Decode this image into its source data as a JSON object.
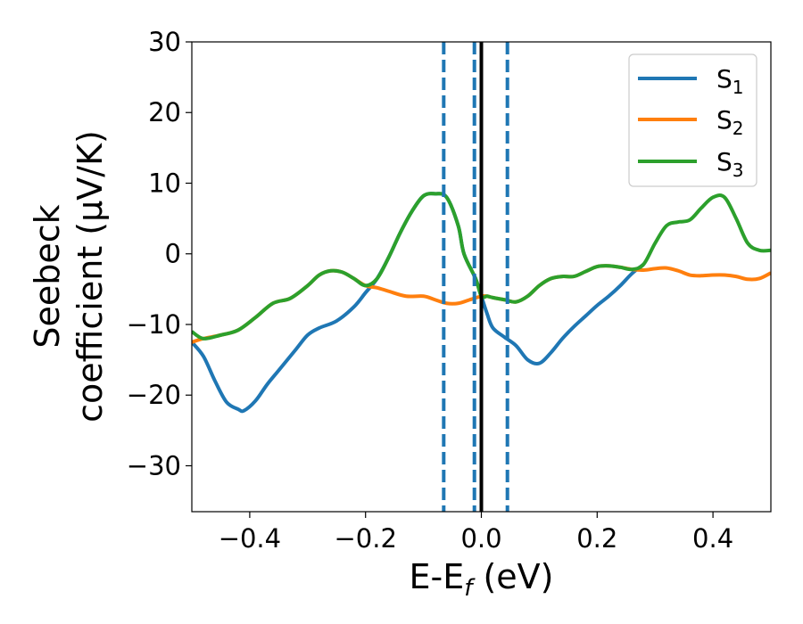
{
  "chart_data": {
    "type": "line",
    "xlabel": {
      "base": "E-E",
      "sub": "f",
      "unit": " (eV)"
    },
    "ylabel": {
      "line1": "Seebeck",
      "line2": "coefficient  (μV/K)"
    },
    "xlim": [
      -0.5,
      0.5
    ],
    "ylim": [
      -36.5,
      30
    ],
    "xticks": [
      -0.4,
      -0.2,
      0.0,
      0.2,
      0.4
    ],
    "xtick_labels": [
      "−0.4",
      "−0.2",
      "0.0",
      "0.2",
      "0.4"
    ],
    "yticks": [
      -30,
      -20,
      -10,
      0,
      10,
      20,
      30
    ],
    "ytick_labels": [
      "−30",
      "−20",
      "−10",
      "0",
      "10",
      "20",
      "30"
    ],
    "grid": false,
    "legend_position": "top-right",
    "series": [
      {
        "name": "S",
        "sub": "1",
        "color": "#1f77b4",
        "x": [
          -0.5,
          -0.48,
          -0.46,
          -0.44,
          -0.42,
          -0.41,
          -0.39,
          -0.37,
          -0.35,
          -0.32,
          -0.3,
          -0.28,
          -0.25,
          -0.22,
          -0.2,
          -0.18,
          -0.16,
          -0.14,
          -0.12,
          -0.1,
          -0.08,
          -0.06,
          -0.04,
          -0.03,
          -0.01,
          0.0,
          0.01,
          0.02,
          0.04,
          0.06,
          0.08,
          0.1,
          0.12,
          0.14,
          0.16,
          0.18,
          0.2,
          0.22,
          0.24,
          0.26,
          0.28
        ],
        "y": [
          -12.5,
          -14.5,
          -18.0,
          -21.0,
          -22.0,
          -22.2,
          -20.8,
          -18.5,
          -16.5,
          -13.5,
          -11.5,
          -10.5,
          -9.5,
          -7.5,
          -5.5,
          -3.5,
          -0.5,
          3.0,
          6.0,
          8.2,
          8.5,
          8.0,
          4.0,
          0.0,
          -3.5,
          -6.0,
          -8.5,
          -10.5,
          -11.8,
          -13.0,
          -15.0,
          -15.5,
          -14.0,
          -12.0,
          -10.3,
          -8.8,
          -7.3,
          -6.0,
          -4.5,
          -2.8,
          -1.5
        ]
      },
      {
        "name": "S",
        "sub": "2",
        "color": "#ff7f0e",
        "x": [
          -0.5,
          -0.48,
          -0.45,
          -0.42,
          -0.39,
          -0.36,
          -0.33,
          -0.3,
          -0.28,
          -0.26,
          -0.24,
          -0.22,
          -0.2,
          -0.18,
          -0.16,
          -0.13,
          -0.1,
          -0.08,
          -0.06,
          -0.04,
          -0.02,
          0.0,
          0.01,
          0.02,
          0.04,
          0.06,
          0.08,
          0.1,
          0.12,
          0.14,
          0.16,
          0.18,
          0.2,
          0.22,
          0.24,
          0.26,
          0.28,
          0.3,
          0.32,
          0.34,
          0.36,
          0.38,
          0.4,
          0.42,
          0.44,
          0.46,
          0.48,
          0.5
        ],
        "y": [
          -12.5,
          -12.0,
          -11.5,
          -10.8,
          -9.0,
          -7.0,
          -6.3,
          -4.5,
          -3.0,
          -2.4,
          -2.6,
          -3.5,
          -4.5,
          -4.8,
          -5.3,
          -6.0,
          -6.0,
          -6.5,
          -7.0,
          -7.0,
          -6.5,
          -6.0,
          -6.0,
          -6.2,
          -6.5,
          -6.8,
          -6.0,
          -4.5,
          -3.5,
          -3.2,
          -3.2,
          -2.5,
          -1.8,
          -1.7,
          -1.9,
          -2.2,
          -2.3,
          -2.1,
          -2.0,
          -2.4,
          -3.0,
          -3.1,
          -3.0,
          -3.0,
          -3.2,
          -3.6,
          -3.5,
          -2.7
        ]
      },
      {
        "name": "S",
        "sub": "3",
        "color": "#2ca02c",
        "x": [
          -0.5,
          -0.48,
          -0.45,
          -0.42,
          -0.39,
          -0.36,
          -0.33,
          -0.3,
          -0.28,
          -0.26,
          -0.24,
          -0.22,
          -0.2,
          -0.18,
          -0.16,
          -0.14,
          -0.12,
          -0.1,
          -0.08,
          -0.06,
          -0.04,
          -0.03,
          -0.01,
          0.0,
          0.01,
          0.02,
          0.04,
          0.06,
          0.08,
          0.1,
          0.12,
          0.14,
          0.16,
          0.18,
          0.2,
          0.22,
          0.24,
          0.26,
          0.28,
          0.3,
          0.32,
          0.34,
          0.36,
          0.38,
          0.4,
          0.42,
          0.44,
          0.46,
          0.48,
          0.5
        ],
        "y": [
          -11.0,
          -12.0,
          -11.5,
          -10.8,
          -9.0,
          -7.0,
          -6.3,
          -4.5,
          -3.0,
          -2.4,
          -2.6,
          -3.5,
          -4.5,
          -3.5,
          -0.5,
          3.0,
          6.0,
          8.2,
          8.5,
          8.0,
          4.0,
          0.0,
          -3.5,
          -6.0,
          -6.0,
          -6.2,
          -6.5,
          -6.8,
          -6.0,
          -4.5,
          -3.5,
          -3.2,
          -3.2,
          -2.5,
          -1.8,
          -1.7,
          -1.9,
          -2.2,
          -1.5,
          1.5,
          4.0,
          4.5,
          4.8,
          6.5,
          8.0,
          8.0,
          5.0,
          1.5,
          0.5,
          0.5
        ]
      }
    ],
    "vlines": [
      {
        "x": -0.065,
        "style": "dashed",
        "color": "#1f77b4"
      },
      {
        "x": -0.012,
        "style": "dashed",
        "color": "#1f77b4"
      },
      {
        "x": 0.045,
        "style": "dashed",
        "color": "#1f77b4"
      },
      {
        "x": 0.0,
        "style": "solid",
        "color": "#000000"
      }
    ]
  }
}
